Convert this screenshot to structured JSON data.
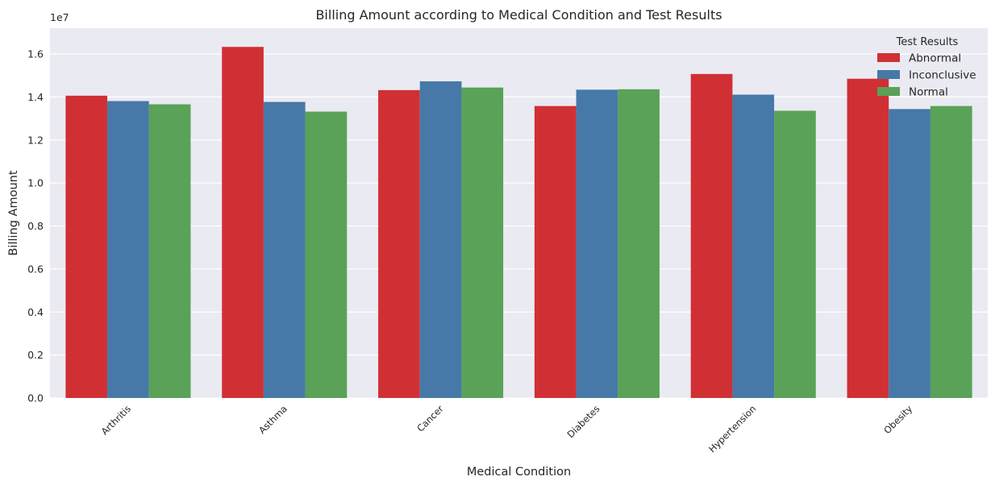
{
  "chart_data": {
    "type": "bar",
    "title": "Billing Amount according to Medical Condition and Test Results",
    "xlabel": "Medical Condition",
    "ylabel": "Billing Amount",
    "y_offset_label": "1e7",
    "ylim": [
      0,
      1.72
    ],
    "yticks": [
      "0.0",
      "0.2",
      "0.4",
      "0.6",
      "0.8",
      "1.0",
      "1.2",
      "1.4",
      "1.6"
    ],
    "categories": [
      "Arthritis",
      "Asthma",
      "Cancer",
      "Diabetes",
      "Hypertension",
      "Obesity"
    ],
    "legend_title": "Test Results",
    "legend_position": "top-right",
    "grid": true,
    "series": [
      {
        "name": "Abnormal",
        "color": "#d03034",
        "values": [
          1.406,
          1.633,
          1.432,
          1.358,
          1.507,
          1.485
        ]
      },
      {
        "name": "Inconclusive",
        "color": "#4679a8",
        "values": [
          1.381,
          1.377,
          1.473,
          1.434,
          1.411,
          1.344
        ]
      },
      {
        "name": "Normal",
        "color": "#59a257",
        "values": [
          1.366,
          1.332,
          1.444,
          1.436,
          1.336,
          1.358
        ]
      }
    ],
    "colors": {
      "background": "#eaeaf2",
      "grid": "#ffffff"
    }
  }
}
